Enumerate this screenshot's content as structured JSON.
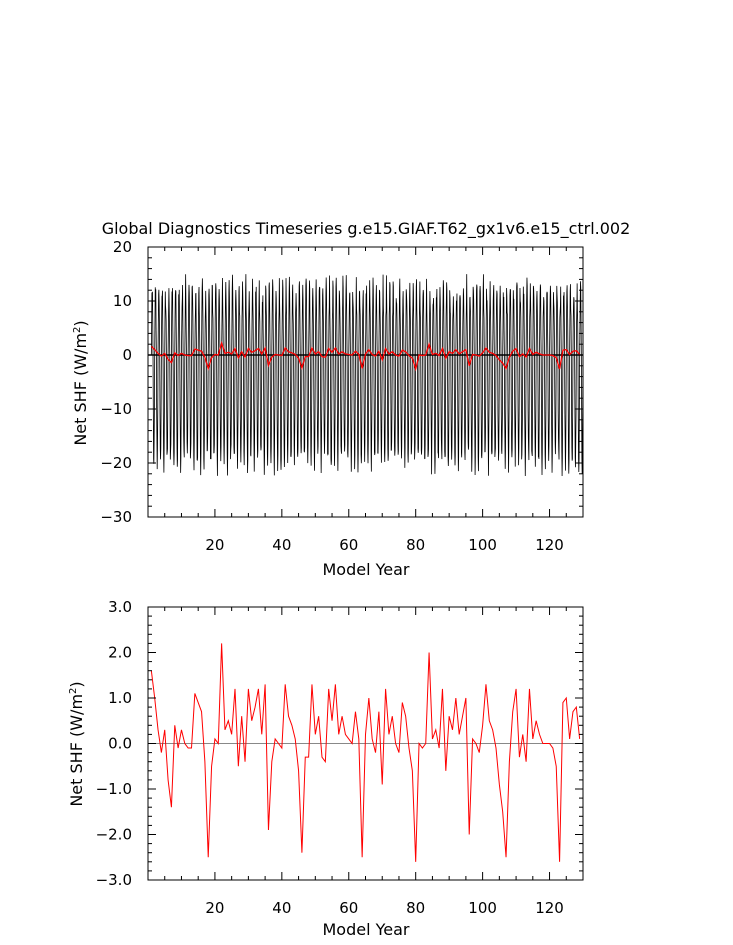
{
  "title": "Global Diagnostics Timeseries g.e15.GIAF.T62_gx1v6.e15_ctrl.002",
  "colors": {
    "monthly": "#000000",
    "annual": "#ff0000",
    "zero_line": "#000000",
    "zero_line_bottom": "#888888"
  },
  "chart_data": [
    {
      "type": "line",
      "xlabel": "Model Year",
      "ylabel": "Net SHF (W/m",
      "ylabel_sup": "2",
      "ylabel_close": ")",
      "xlim": [
        0,
        130
      ],
      "ylim": [
        -30,
        20
      ],
      "xticks": [
        20,
        40,
        60,
        80,
        100,
        120
      ],
      "yticks": [
        -30,
        -20,
        -10,
        0,
        10,
        20
      ],
      "ytick_labels": [
        "−30",
        "−20",
        "−10",
        "0",
        "10",
        "20"
      ],
      "grid": false,
      "series": [
        {
          "style": "monthly seasonal oscillation",
          "period_years": 1,
          "amplitude_max_typical": 12,
          "amplitude_min_typical": -20,
          "range_observed": [
            -24.5,
            16.5
          ]
        },
        {
          "style": "annual mean",
          "source": "bottom panel values"
        }
      ]
    },
    {
      "type": "line",
      "xlabel": "Model Year",
      "ylabel": "Net SHF (W/m",
      "ylabel_sup": "2",
      "ylabel_close": ")",
      "xlim": [
        0,
        130
      ],
      "ylim": [
        -3,
        3
      ],
      "xticks": [
        20,
        40,
        60,
        80,
        100,
        120
      ],
      "yticks": [
        -3,
        -2,
        -1,
        0,
        1,
        2,
        3
      ],
      "ytick_labels": [
        "−3.0",
        "−2.0",
        "−1.0",
        "0.0",
        "1.0",
        "2.0",
        "3.0"
      ],
      "grid": false,
      "x": [
        1,
        2,
        3,
        4,
        5,
        6,
        7,
        8,
        9,
        10,
        11,
        12,
        13,
        14,
        15,
        16,
        17,
        18,
        19,
        20,
        21,
        22,
        23,
        24,
        25,
        26,
        27,
        28,
        29,
        30,
        31,
        32,
        33,
        34,
        35,
        36,
        37,
        38,
        39,
        40,
        41,
        42,
        43,
        44,
        45,
        46,
        47,
        48,
        49,
        50,
        51,
        52,
        53,
        54,
        55,
        56,
        57,
        58,
        59,
        60,
        61,
        62,
        63,
        64,
        65,
        66,
        67,
        68,
        69,
        70,
        71,
        72,
        73,
        74,
        75,
        76,
        77,
        78,
        79,
        80,
        81,
        82,
        83,
        84,
        85,
        86,
        87,
        88,
        89,
        90,
        91,
        92,
        93,
        94,
        95,
        96,
        97,
        98,
        99,
        100,
        101,
        102,
        103,
        104,
        105,
        106,
        107,
        108,
        109,
        110,
        111,
        112,
        113,
        114,
        115,
        116,
        117,
        118,
        119,
        120,
        121,
        122,
        123,
        124,
        125,
        126,
        127,
        128,
        129
      ],
      "values": [
        1.6,
        1.0,
        0.3,
        -0.2,
        0.3,
        -0.8,
        -1.4,
        0.4,
        -0.1,
        0.3,
        0.0,
        -0.1,
        -0.1,
        1.1,
        0.9,
        0.7,
        -0.4,
        -2.5,
        -0.5,
        0.1,
        0.0,
        2.2,
        0.3,
        0.5,
        0.2,
        1.2,
        -0.5,
        0.6,
        -0.4,
        1.2,
        0.5,
        0.8,
        1.2,
        0.2,
        1.3,
        -1.9,
        -0.4,
        0.1,
        0.0,
        -0.1,
        1.3,
        0.6,
        0.4,
        0.1,
        -0.6,
        -2.4,
        -0.3,
        -0.3,
        1.3,
        0.2,
        0.6,
        -0.3,
        -0.4,
        1.2,
        0.5,
        1.3,
        0.2,
        0.6,
        0.2,
        0.1,
        0.0,
        0.7,
        0.1,
        -2.5,
        0.2,
        1.0,
        0.1,
        -0.2,
        0.7,
        -0.9,
        1.2,
        0.2,
        0.6,
        0.0,
        -0.2,
        0.9,
        0.6,
        -0.1,
        -0.6,
        -2.6,
        0.0,
        -0.1,
        0.0,
        2.0,
        0.1,
        0.3,
        -0.1,
        1.2,
        -0.6,
        0.6,
        0.3,
        1.0,
        0.2,
        0.6,
        1.0,
        -2.0,
        0.1,
        0.0,
        -0.2,
        0.4,
        1.3,
        0.5,
        0.3,
        -0.1,
        -0.9,
        -1.5,
        -2.5,
        -0.4,
        0.7,
        1.2,
        -0.3,
        0.2,
        -0.4,
        1.2,
        0.1,
        0.5,
        0.2,
        0.0,
        0.0,
        0.0,
        -0.1,
        -0.5,
        -2.6,
        0.9,
        1.0,
        0.1,
        0.7,
        0.8,
        0.1
      ]
    }
  ]
}
